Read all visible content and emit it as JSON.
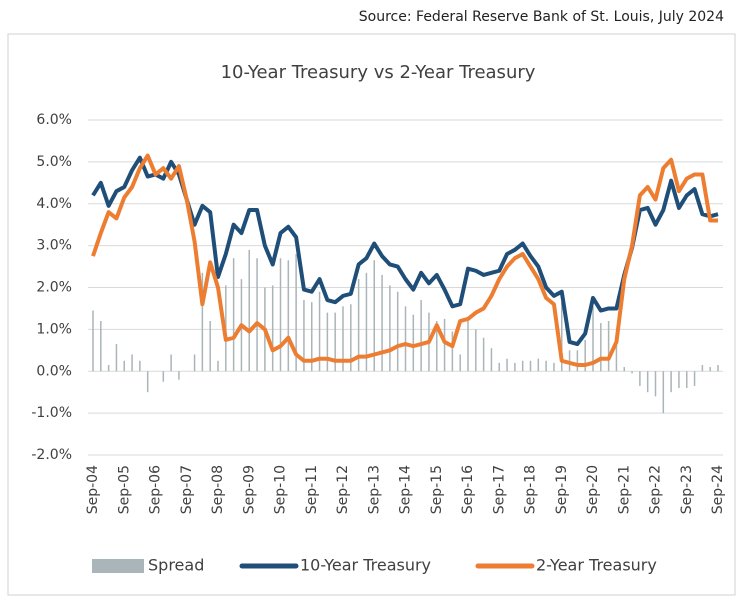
{
  "source": "Source: Federal Reserve Bank of St. Louis, July 2024",
  "chart_data": {
    "type": "line",
    "title": "10-Year Treasury vs 2-Year Treasury",
    "categories": [
      "Sep-04",
      null,
      null,
      null,
      "Sep-05",
      null,
      null,
      null,
      "Sep-06",
      null,
      null,
      null,
      "Sep-07",
      null,
      null,
      null,
      "Sep-08",
      null,
      null,
      null,
      "Sep-09",
      null,
      null,
      null,
      "Sep-10",
      null,
      null,
      null,
      "Sep-11",
      null,
      null,
      null,
      "Sep-12",
      null,
      null,
      null,
      "Sep-13",
      null,
      null,
      null,
      "Sep-14",
      null,
      null,
      null,
      "Sep-15",
      null,
      null,
      null,
      "Sep-16",
      null,
      null,
      null,
      "Sep-17",
      null,
      null,
      null,
      "Sep-18",
      null,
      null,
      null,
      "Sep-19",
      null,
      null,
      null,
      "Sep-20",
      null,
      null,
      null,
      "Sep-21",
      null,
      null,
      null,
      "Sep-22",
      null,
      null,
      null,
      "Sep-23",
      null,
      null,
      null,
      "Sep-24"
    ],
    "series": [
      {
        "name": "Spread",
        "kind": "bar",
        "color": "#a9b5b9",
        "values": [
          1.45,
          1.2,
          0.15,
          0.65,
          0.25,
          0.4,
          0.25,
          -0.5,
          0,
          -0.25,
          0.4,
          -0.2,
          0,
          0.4,
          2.35,
          1.2,
          0.25,
          2.05,
          2.7,
          2.2,
          2.9,
          2.7,
          2.0,
          2.05,
          2.7,
          2.65,
          2.8,
          1.7,
          1.65,
          1.9,
          1.4,
          1.4,
          1.55,
          1.6,
          2.2,
          2.35,
          2.65,
          2.3,
          2.05,
          1.9,
          1.55,
          1.35,
          1.7,
          1.4,
          1.2,
          1.25,
          0.95,
          0.4,
          1.2,
          1.0,
          0.8,
          0.55,
          0.2,
          0.3,
          0.2,
          0.25,
          0.25,
          0.3,
          0.25,
          0.2,
          1.65,
          0.5,
          0.5,
          0.75,
          1.55,
          1.15,
          1.2,
          0.8,
          0.1,
          -0.05,
          -0.35,
          -0.5,
          -0.6,
          -1.0,
          -0.5,
          -0.4,
          -0.4,
          -0.35,
          0.15,
          0.1,
          0.15
        ]
      },
      {
        "name": "10-Year Treasury",
        "kind": "line",
        "color": "#1f4e79",
        "values": [
          4.2,
          4.5,
          3.95,
          4.3,
          4.4,
          4.8,
          5.1,
          4.65,
          4.7,
          4.6,
          5.0,
          4.7,
          4.1,
          3.5,
          3.95,
          3.8,
          2.25,
          2.8,
          3.5,
          3.3,
          3.85,
          3.85,
          3.0,
          2.55,
          3.3,
          3.45,
          3.2,
          1.95,
          1.9,
          2.2,
          1.7,
          1.65,
          1.8,
          1.85,
          2.55,
          2.7,
          3.05,
          2.75,
          2.55,
          2.5,
          2.2,
          1.95,
          2.35,
          2.1,
          2.3,
          1.95,
          1.55,
          1.6,
          2.45,
          2.4,
          2.3,
          2.35,
          2.4,
          2.8,
          2.9,
          3.05,
          2.75,
          2.5,
          2.0,
          1.8,
          1.9,
          0.7,
          0.65,
          0.9,
          1.75,
          1.45,
          1.5,
          1.5,
          2.3,
          2.95,
          3.85,
          3.9,
          3.5,
          3.85,
          4.55,
          3.9,
          4.2,
          4.35,
          3.75,
          3.7,
          3.75
        ]
      },
      {
        "name": "2-Year Treasury",
        "kind": "line",
        "color": "#ed7d31",
        "values": [
          2.75,
          3.3,
          3.8,
          3.65,
          4.15,
          4.4,
          4.85,
          5.15,
          4.7,
          4.85,
          4.6,
          4.9,
          4.1,
          3.1,
          1.6,
          2.6,
          2.0,
          0.75,
          0.8,
          1.1,
          0.95,
          1.15,
          1.0,
          0.5,
          0.6,
          0.8,
          0.4,
          0.25,
          0.25,
          0.3,
          0.3,
          0.25,
          0.25,
          0.25,
          0.35,
          0.35,
          0.4,
          0.45,
          0.5,
          0.6,
          0.65,
          0.6,
          0.65,
          0.7,
          1.1,
          0.7,
          0.6,
          1.2,
          1.25,
          1.4,
          1.5,
          1.8,
          2.2,
          2.5,
          2.7,
          2.8,
          2.5,
          2.2,
          1.75,
          1.6,
          0.25,
          0.2,
          0.15,
          0.15,
          0.2,
          0.3,
          0.3,
          0.7,
          2.2,
          3.0,
          4.2,
          4.4,
          4.1,
          4.85,
          5.05,
          4.3,
          4.6,
          4.7,
          4.7,
          3.6,
          3.6
        ]
      }
    ],
    "ylim": [
      -2,
      6
    ],
    "yticks": [
      {
        "value": -2,
        "label": "-2.0%"
      },
      {
        "value": -1,
        "label": "-1.0%"
      },
      {
        "value": 0,
        "label": "0.0%"
      },
      {
        "value": 1,
        "label": "1.0%"
      },
      {
        "value": 2,
        "label": "2.0%"
      },
      {
        "value": 3,
        "label": "3.0%"
      },
      {
        "value": 4,
        "label": "4.0%"
      },
      {
        "value": 5,
        "label": "5.0%"
      },
      {
        "value": 6,
        "label": "6.0%"
      }
    ],
    "grid": true
  }
}
